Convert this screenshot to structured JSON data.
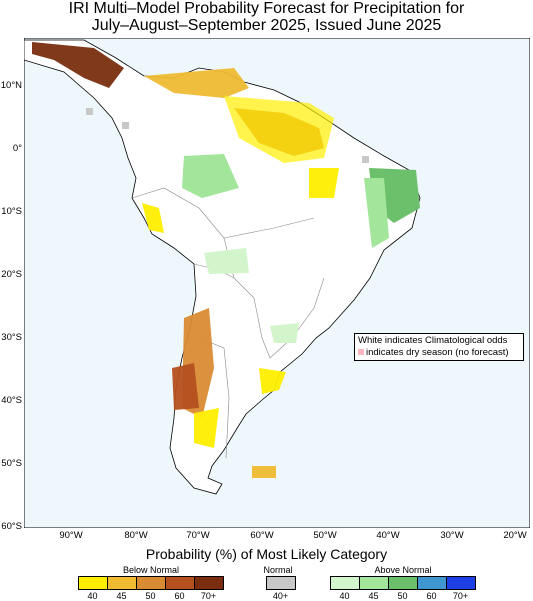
{
  "title": {
    "line1": "IRI Multi–Model Probability Forecast for Precipitation for",
    "line2": "July–August–September 2025, Issued June 2025"
  },
  "map": {
    "ocean_color": "#eef7fc",
    "land_color": "#ffffff",
    "lat_labels": [
      "10°N",
      "0°",
      "10°S",
      "20°S",
      "30°S",
      "40°S",
      "50°S",
      "60°S"
    ],
    "lon_labels": [
      "90°W",
      "80°W",
      "70°W",
      "60°W",
      "50°W",
      "40°W",
      "30°W",
      "20°W"
    ],
    "notes": {
      "white": "White indicates Climatological odds",
      "dry": "indicates dry season (no forecast)"
    }
  },
  "legend": {
    "caption": "Probability (%) of Most Likely Category",
    "below": {
      "title": "Below Normal",
      "colors": [
        "#ffee00",
        "#efbb33",
        "#d98b33",
        "#b5501f",
        "#7a2e0f"
      ],
      "labels": [
        "40",
        "45",
        "50",
        "60",
        "70+"
      ]
    },
    "normal": {
      "title": "Normal",
      "color": "#c8c8c8",
      "label": "40+"
    },
    "above": {
      "title": "Above Normal",
      "colors": [
        "#d2f5cc",
        "#a3e69b",
        "#6cc06c",
        "#3f96d1",
        "#1f3fe6"
      ],
      "labels": [
        "40",
        "45",
        "50",
        "60",
        "70+"
      ]
    }
  }
}
